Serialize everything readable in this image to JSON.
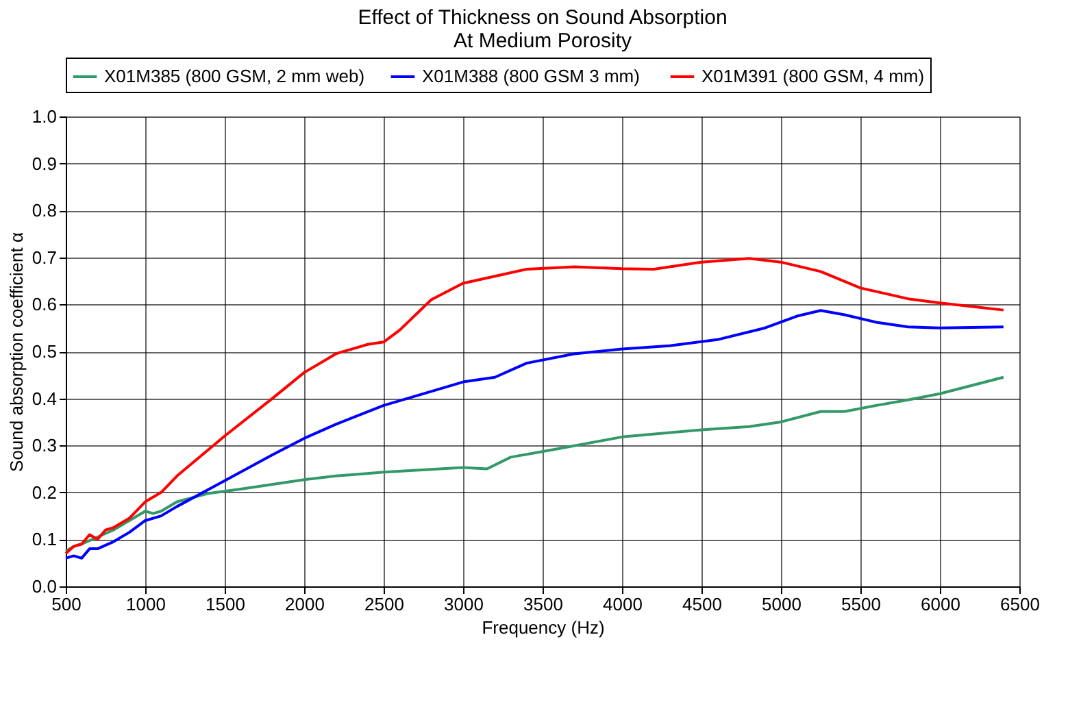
{
  "chart_data": {
    "type": "line",
    "title": "Effect of Thickness on Sound Absorption\nAt Medium Porosity",
    "xlabel": "Frequency (Hz)",
    "ylabel": "Sound absorption coefficient α",
    "xlim": [
      500,
      6500
    ],
    "xticks": [
      500,
      1000,
      1500,
      2000,
      2500,
      3000,
      3500,
      4000,
      4500,
      5000,
      5500,
      6000,
      6500
    ],
    "ylim": [
      0,
      1
    ],
    "yticks": [
      {
        "value": 0,
        "label": "0.0"
      },
      0.1,
      0.2,
      0.3,
      0.4,
      0.5,
      0.6,
      0.7,
      0.8,
      0.9,
      {
        "value": 1,
        "label": "1.0"
      }
    ],
    "grid": true,
    "legend": "top",
    "marker": "none",
    "line_style": "solid",
    "series": [
      {
        "name": "X01M385 (800 GSM, 2 mm web)",
        "color": "#339966",
        "x": [
          500,
          550,
          600,
          700,
          800,
          900,
          1000,
          1050,
          1100,
          1200,
          1400,
          1600,
          2000,
          2200,
          2500,
          3000,
          3150,
          3300,
          3600,
          4000,
          4500,
          4800,
          5000,
          5250,
          5400,
          5600,
          5800,
          6000,
          6400
        ],
        "values": [
          0.075,
          0.085,
          0.09,
          0.105,
          0.12,
          0.14,
          0.16,
          0.155,
          0.16,
          0.18,
          0.198,
          0.207,
          0.227,
          0.235,
          0.243,
          0.253,
          0.25,
          0.275,
          0.293,
          0.318,
          0.333,
          0.34,
          0.35,
          0.372,
          0.372,
          0.385,
          0.397,
          0.41,
          0.445
        ]
      },
      {
        "name": "X01M388 (800 GSM  3 mm)",
        "color": "#0000ff",
        "x": [
          500,
          550,
          600,
          650,
          700,
          800,
          900,
          1000,
          1100,
          1200,
          1500,
          1800,
          2000,
          2200,
          2500,
          2800,
          3000,
          3200,
          3400,
          3700,
          4000,
          4300,
          4600,
          4900,
          5100,
          5250,
          5400,
          5600,
          5800,
          6000,
          6400
        ],
        "values": [
          0.06,
          0.065,
          0.06,
          0.08,
          0.08,
          0.095,
          0.115,
          0.14,
          0.15,
          0.17,
          0.225,
          0.28,
          0.315,
          0.345,
          0.385,
          0.415,
          0.435,
          0.445,
          0.475,
          0.495,
          0.505,
          0.512,
          0.525,
          0.55,
          0.575,
          0.587,
          0.578,
          0.562,
          0.552,
          0.55,
          0.552
        ]
      },
      {
        "name": "X01M391 (800 GSM, 4 mm)",
        "color": "#ff0000",
        "x": [
          500,
          550,
          600,
          650,
          700,
          750,
          800,
          900,
          1000,
          1100,
          1200,
          1500,
          1800,
          2000,
          2200,
          2400,
          2500,
          2600,
          2800,
          3000,
          3200,
          3400,
          3700,
          4000,
          4200,
          4500,
          4800,
          5000,
          5250,
          5500,
          5800,
          6000,
          6400
        ],
        "values": [
          0.07,
          0.085,
          0.09,
          0.11,
          0.1,
          0.12,
          0.125,
          0.145,
          0.18,
          0.2,
          0.235,
          0.32,
          0.4,
          0.455,
          0.495,
          0.515,
          0.52,
          0.545,
          0.61,
          0.645,
          0.66,
          0.675,
          0.68,
          0.676,
          0.675,
          0.69,
          0.698,
          0.69,
          0.67,
          0.635,
          0.612,
          0.603,
          0.588
        ]
      }
    ]
  }
}
